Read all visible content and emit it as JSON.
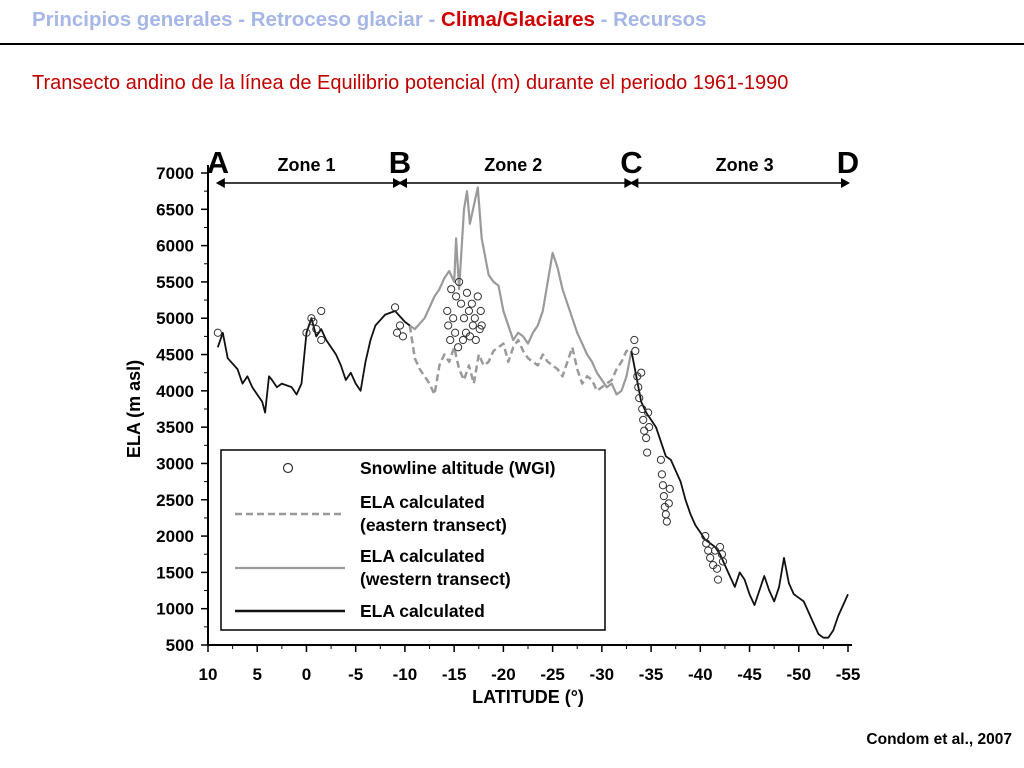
{
  "header": {
    "nav": [
      {
        "label": "Principios generales",
        "active": false
      },
      {
        "label": "Retroceso glaciar",
        "active": false
      },
      {
        "label": "Clima/Glaciares",
        "active": true
      },
      {
        "label": "Recursos",
        "active": false
      }
    ],
    "separator": " - "
  },
  "subtitle": "Transecto andino de la línea de Equilibrio potencial (m)  durante el periodo 1961-1990",
  "source": "Condom et al., 2007",
  "colors": {
    "nav": "#a6b6e6",
    "nav_active": "#d10000",
    "subtitle": "#c00000",
    "black_line": "#111111",
    "gray_line": "#9a9a9a"
  },
  "chart_data": {
    "type": "line",
    "xlabel": "LATITUDE (°)",
    "ylabel": "ELA (m asl)",
    "xlim": [
      10,
      -55
    ],
    "ylim": [
      500,
      7000
    ],
    "x_ticks": [
      10,
      5,
      0,
      -5,
      -10,
      -15,
      -20,
      -25,
      -30,
      -35,
      -40,
      -45,
      -50,
      -55
    ],
    "y_ticks": [
      500,
      1000,
      1500,
      2000,
      2500,
      3000,
      3500,
      4000,
      4500,
      5000,
      5500,
      6000,
      6500,
      7000
    ],
    "zones": {
      "markers": [
        {
          "label": "A",
          "lat": 9
        },
        {
          "label": "B",
          "lat": -9.5
        },
        {
          "label": "C",
          "lat": -33
        },
        {
          "label": "D",
          "lat": -55
        }
      ],
      "labels": [
        {
          "label": "Zone 1",
          "lat": 0
        },
        {
          "label": "Zone 2",
          "lat": -21
        },
        {
          "label": "Zone 3",
          "lat": -44.5
        }
      ]
    },
    "legend": {
      "position": "bottom-left",
      "items": [
        {
          "key": "wgi",
          "label": "Snowline altitude (WGI)"
        },
        {
          "key": "eastern",
          "label": "ELA calculated",
          "label2": "(eastern transect)"
        },
        {
          "key": "western",
          "label": "ELA calculated",
          "label2": "(western transect)"
        },
        {
          "key": "ela",
          "label": "ELA calculated"
        }
      ]
    },
    "series": [
      {
        "key": "ela",
        "name": "ELA calculated",
        "style": "solid-black",
        "segments": [
          [
            [
              9,
              4600
            ],
            [
              8.5,
              4800
            ],
            [
              8,
              4450
            ],
            [
              7,
              4300
            ],
            [
              6.5,
              4100
            ],
            [
              6,
              4200
            ],
            [
              5.5,
              4050
            ],
            [
              5,
              3950
            ],
            [
              4.5,
              3850
            ],
            [
              4.2,
              3700
            ],
            [
              3.8,
              4200
            ],
            [
              3.5,
              4150
            ],
            [
              3,
              4050
            ],
            [
              2.5,
              4100
            ],
            [
              1.5,
              4050
            ],
            [
              1,
              3950
            ],
            [
              0.5,
              4100
            ],
            [
              0,
              4800
            ],
            [
              -0.5,
              5000
            ],
            [
              -1,
              4750
            ],
            [
              -1.5,
              4850
            ],
            [
              -2,
              4700
            ],
            [
              -2.5,
              4600
            ],
            [
              -3,
              4500
            ],
            [
              -3.5,
              4350
            ],
            [
              -4,
              4150
            ],
            [
              -4.5,
              4250
            ],
            [
              -5,
              4100
            ],
            [
              -5.5,
              4000
            ],
            [
              -6,
              4400
            ],
            [
              -6.5,
              4700
            ],
            [
              -7,
              4900
            ],
            [
              -8,
              5050
            ],
            [
              -9,
              5100
            ],
            [
              -10,
              4950
            ],
            [
              -10.5,
              4900
            ]
          ],
          [
            [
              -33,
              4550
            ],
            [
              -33.5,
              4200
            ],
            [
              -34,
              3850
            ],
            [
              -34.5,
              3700
            ],
            [
              -35,
              3600
            ],
            [
              -35.5,
              3500
            ],
            [
              -36,
              3300
            ],
            [
              -36.5,
              3100
            ],
            [
              -37,
              3050
            ],
            [
              -37.5,
              2900
            ],
            [
              -38,
              2750
            ],
            [
              -38.5,
              2500
            ],
            [
              -39,
              2300
            ],
            [
              -39.5,
              2150
            ],
            [
              -40,
              2050
            ],
            [
              -40.5,
              1950
            ],
            [
              -41,
              1900
            ],
            [
              -41.5,
              1850
            ],
            [
              -42,
              1750
            ],
            [
              -42.5,
              1600
            ],
            [
              -43,
              1450
            ],
            [
              -43.5,
              1300
            ],
            [
              -44,
              1500
            ],
            [
              -44.5,
              1400
            ],
            [
              -45,
              1200
            ],
            [
              -45.5,
              1050
            ],
            [
              -46,
              1250
            ],
            [
              -46.5,
              1450
            ],
            [
              -47,
              1250
            ],
            [
              -47.5,
              1100
            ],
            [
              -48,
              1300
            ],
            [
              -48.5,
              1700
            ],
            [
              -49,
              1350
            ],
            [
              -49.5,
              1200
            ],
            [
              -50,
              1150
            ],
            [
              -50.5,
              1100
            ],
            [
              -51,
              950
            ],
            [
              -51.5,
              800
            ],
            [
              -52,
              650
            ],
            [
              -52.5,
              600
            ],
            [
              -53,
              600
            ],
            [
              -53.5,
              700
            ],
            [
              -54,
              900
            ],
            [
              -54.5,
              1050
            ],
            [
              -55,
              1200
            ]
          ]
        ]
      },
      {
        "key": "western",
        "name": "ELA calculated (western transect)",
        "style": "solid-gray",
        "segments": [
          [
            [
              -10.5,
              4900
            ],
            [
              -11,
              4850
            ],
            [
              -12,
              5000
            ],
            [
              -13,
              5300
            ],
            [
              -13.5,
              5400
            ],
            [
              -14,
              5550
            ],
            [
              -14.5,
              5650
            ],
            [
              -15,
              5500
            ],
            [
              -15.2,
              6100
            ],
            [
              -15.5,
              5400
            ],
            [
              -16,
              6500
            ],
            [
              -16.3,
              6750
            ],
            [
              -16.6,
              6300
            ],
            [
              -17,
              6550
            ],
            [
              -17.4,
              6800
            ],
            [
              -17.8,
              6100
            ],
            [
              -18.5,
              5600
            ],
            [
              -19,
              5500
            ],
            [
              -19.5,
              5450
            ],
            [
              -20,
              5100
            ],
            [
              -20.5,
              4900
            ],
            [
              -21,
              4700
            ],
            [
              -21.5,
              4800
            ],
            [
              -22,
              4750
            ],
            [
              -22.5,
              4650
            ],
            [
              -23,
              4800
            ],
            [
              -23.5,
              4900
            ],
            [
              -24,
              5100
            ],
            [
              -24.5,
              5500
            ],
            [
              -25,
              5900
            ],
            [
              -25.5,
              5700
            ],
            [
              -26,
              5400
            ],
            [
              -26.5,
              5200
            ],
            [
              -27,
              5000
            ],
            [
              -27.5,
              4800
            ],
            [
              -28,
              4650
            ],
            [
              -28.5,
              4500
            ],
            [
              -29,
              4400
            ],
            [
              -29.5,
              4250
            ],
            [
              -30,
              4150
            ],
            [
              -30.5,
              4050
            ],
            [
              -31,
              4100
            ],
            [
              -31.5,
              3950
            ],
            [
              -32,
              4000
            ],
            [
              -32.5,
              4200
            ],
            [
              -33,
              4550
            ]
          ]
        ]
      },
      {
        "key": "eastern",
        "name": "ELA calculated (eastern transect)",
        "style": "dashed-gray",
        "segments": [
          [
            [
              -10.5,
              4900
            ],
            [
              -11,
              4450
            ],
            [
              -11.5,
              4300
            ],
            [
              -12,
              4200
            ],
            [
              -12.5,
              4100
            ],
            [
              -13,
              3950
            ],
            [
              -13.5,
              4350
            ],
            [
              -14,
              4500
            ],
            [
              -14.5,
              4400
            ],
            [
              -15,
              4600
            ],
            [
              -15.5,
              4300
            ],
            [
              -16,
              4150
            ],
            [
              -16.5,
              4350
            ],
            [
              -17,
              4100
            ],
            [
              -17.5,
              4500
            ],
            [
              -18,
              4350
            ],
            [
              -18.5,
              4400
            ],
            [
              -19,
              4550
            ],
            [
              -20,
              4650
            ],
            [
              -20.5,
              4400
            ],
            [
              -21,
              4600
            ],
            [
              -21.5,
              4700
            ],
            [
              -22,
              4550
            ],
            [
              -22.5,
              4450
            ],
            [
              -23,
              4400
            ],
            [
              -23.5,
              4350
            ],
            [
              -24,
              4500
            ],
            [
              -24.5,
              4400
            ],
            [
              -25,
              4350
            ],
            [
              -25.5,
              4300
            ],
            [
              -26,
              4200
            ],
            [
              -26.5,
              4400
            ],
            [
              -27,
              4600
            ],
            [
              -27.5,
              4300
            ],
            [
              -28,
              4100
            ],
            [
              -28.5,
              4200
            ],
            [
              -29,
              4150
            ],
            [
              -29.5,
              4000
            ],
            [
              -30,
              4050
            ],
            [
              -30.5,
              4100
            ],
            [
              -31,
              4150
            ],
            [
              -31.5,
              4300
            ],
            [
              -32,
              4400
            ],
            [
              -32.5,
              4550
            ],
            [
              -33,
              4550
            ]
          ]
        ]
      }
    ],
    "wgi_points": [
      [
        9,
        4800
      ],
      [
        0,
        4800
      ],
      [
        -0.5,
        5000
      ],
      [
        -0.7,
        4950
      ],
      [
        -1,
        4850
      ],
      [
        -1.5,
        4700
      ],
      [
        -1.5,
        5100
      ],
      [
        -9,
        5150
      ],
      [
        -9.5,
        4900
      ],
      [
        -9.2,
        4800
      ],
      [
        -9.8,
        4750
      ],
      [
        -14.3,
        5100
      ],
      [
        -14.4,
        4900
      ],
      [
        -14.6,
        4700
      ],
      [
        -14.7,
        5400
      ],
      [
        -14.9,
        5000
      ],
      [
        -15.1,
        4800
      ],
      [
        -15.2,
        5300
      ],
      [
        -15.4,
        4600
      ],
      [
        -15.5,
        5500
      ],
      [
        -15.7,
        5200
      ],
      [
        -15.9,
        4700
      ],
      [
        -16.0,
        5000
      ],
      [
        -16.2,
        4800
      ],
      [
        -16.3,
        5350
      ],
      [
        -16.5,
        5100
      ],
      [
        -16.6,
        4750
      ],
      [
        -16.8,
        5200
      ],
      [
        -16.9,
        4900
      ],
      [
        -17.1,
        5000
      ],
      [
        -17.2,
        4700
      ],
      [
        -17.4,
        5300
      ],
      [
        -17.6,
        4850
      ],
      [
        -17.7,
        5100
      ],
      [
        -17.8,
        4900
      ],
      [
        -33.3,
        4700
      ],
      [
        -33.4,
        4550
      ],
      [
        -33.6,
        4200
      ],
      [
        -33.7,
        4050
      ],
      [
        -33.8,
        3900
      ],
      [
        -34.0,
        4250
      ],
      [
        -34.1,
        3750
      ],
      [
        -34.2,
        3600
      ],
      [
        -34.3,
        3450
      ],
      [
        -34.5,
        3350
      ],
      [
        -34.6,
        3150
      ],
      [
        -34.7,
        3700
      ],
      [
        -34.8,
        3500
      ],
      [
        -36.0,
        3050
      ],
      [
        -36.1,
        2850
      ],
      [
        -36.2,
        2700
      ],
      [
        -36.3,
        2550
      ],
      [
        -36.4,
        2400
      ],
      [
        -36.5,
        2300
      ],
      [
        -36.6,
        2200
      ],
      [
        -36.8,
        2450
      ],
      [
        -36.9,
        2650
      ],
      [
        -40.5,
        2000
      ],
      [
        -40.6,
        1900
      ],
      [
        -40.8,
        1800
      ],
      [
        -41.0,
        1700
      ],
      [
        -41.3,
        1600
      ],
      [
        -41.5,
        1800
      ],
      [
        -41.7,
        1550
      ],
      [
        -42.0,
        1850
      ],
      [
        -42.2,
        1750
      ],
      [
        -41.8,
        1400
      ],
      [
        -42.3,
        1650
      ]
    ]
  }
}
